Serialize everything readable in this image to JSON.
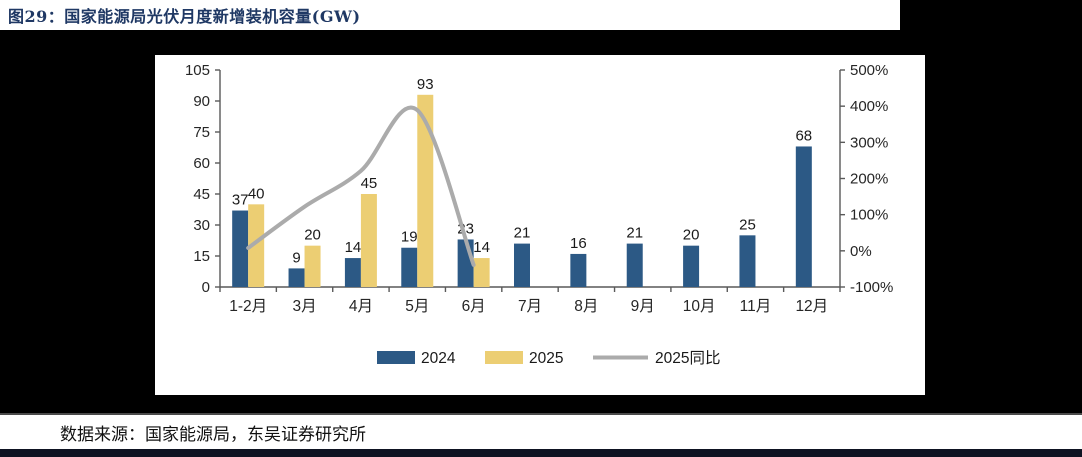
{
  "page": {
    "title": "图29：国家能源局光伏月度新增装机容量(GW)",
    "source": "数据来源：国家能源局，东吴证券研究所"
  },
  "colors": {
    "title_navy": "#1F3864",
    "bar_2024": "#2C5985",
    "bar_2025": "#ECCE73",
    "line_yoy": "#ABABAB",
    "axis_line": "#595959",
    "label_text": "#262626",
    "bottom_bar": "#0e1322"
  },
  "chart_data": {
    "type": "bar",
    "subtype": "clustered-bar-with-line",
    "categories": [
      "1-2月",
      "3月",
      "4月",
      "5月",
      "6月",
      "7月",
      "8月",
      "9月",
      "10月",
      "11月",
      "12月"
    ],
    "series": [
      {
        "name": "2024",
        "kind": "bar",
        "color": "#2C5985",
        "axis": "left",
        "values": [
          37,
          9,
          14,
          19,
          23,
          21,
          16,
          21,
          20,
          25,
          68
        ]
      },
      {
        "name": "2025",
        "kind": "bar",
        "color": "#ECCE73",
        "axis": "left",
        "values": [
          40,
          20,
          45,
          93,
          14,
          null,
          null,
          null,
          null,
          null,
          null
        ]
      },
      {
        "name": "2025同比",
        "kind": "line",
        "color": "#ABABAB",
        "axis": "right",
        "values_pct": [
          8,
          122,
          221,
          389,
          -39,
          null,
          null,
          null,
          null,
          null,
          null
        ]
      }
    ],
    "left_axis": {
      "min": 0,
      "max": 105,
      "ticks": [
        0,
        15,
        30,
        45,
        60,
        75,
        90,
        105
      ]
    },
    "right_axis": {
      "min": -100,
      "max": 500,
      "tick_labels": [
        "500%",
        "400%",
        "300%",
        "200%",
        "100%",
        "0%",
        "-100%"
      ],
      "tick_values": [
        500,
        400,
        300,
        200,
        100,
        0,
        -100
      ]
    },
    "legend": [
      {
        "label": "2024",
        "swatch": "rect",
        "color": "#2C5985"
      },
      {
        "label": "2025",
        "swatch": "rect",
        "color": "#ECCE73"
      },
      {
        "label": "2025同比",
        "swatch": "line",
        "color": "#ABABAB"
      }
    ],
    "grid": false,
    "legend_position": "bottom",
    "data_labels": true
  }
}
